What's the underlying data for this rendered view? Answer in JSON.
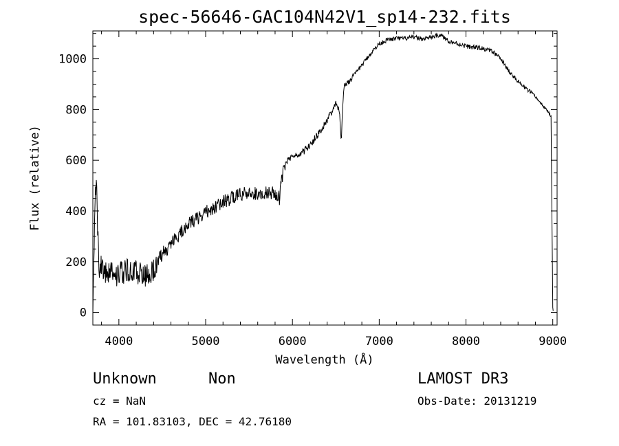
{
  "chart_data": {
    "type": "line",
    "title": "spec-56646-GAC104N42V1_sp14-232.fits",
    "xlabel": "Wavelength (Å)",
    "ylabel": "Flux (relative)",
    "xlim": [
      3700,
      9050
    ],
    "ylim": [
      -50,
      1110
    ],
    "xticks": [
      4000,
      5000,
      6000,
      7000,
      8000,
      9000
    ],
    "yticks": [
      0,
      200,
      400,
      600,
      800,
      1000
    ],
    "xtick_labels": [
      "4000",
      "5000",
      "6000",
      "7000",
      "8000",
      "9000"
    ],
    "ytick_labels": [
      "0",
      "200",
      "400",
      "600",
      "800",
      "1000"
    ],
    "series": [
      {
        "name": "flux",
        "x": [
          3700,
          3720,
          3740,
          3760,
          3780,
          3800,
          3850,
          3900,
          3950,
          4000,
          4100,
          4200,
          4300,
          4400,
          4500,
          4600,
          4700,
          4800,
          4900,
          5000,
          5100,
          5200,
          5300,
          5400,
          5500,
          5600,
          5700,
          5800,
          5850,
          5880,
          5900,
          5950,
          6000,
          6100,
          6200,
          6300,
          6400,
          6500,
          6540,
          6563,
          6580,
          6600,
          6700,
          6800,
          6900,
          7000,
          7100,
          7200,
          7300,
          7400,
          7500,
          7600,
          7700,
          7800,
          7900,
          8000,
          8100,
          8200,
          8300,
          8400,
          8500,
          8600,
          8700,
          8800,
          8900,
          8950,
          8980,
          9000,
          9005
        ],
        "y": [
          20,
          350,
          560,
          280,
          140,
          190,
          150,
          175,
          145,
          155,
          165,
          160,
          145,
          170,
          230,
          270,
          310,
          345,
          370,
          395,
          415,
          435,
          450,
          465,
          470,
          470,
          475,
          470,
          450,
          530,
          565,
          600,
          610,
          625,
          660,
          705,
          760,
          820,
          800,
          670,
          830,
          895,
          930,
          975,
          1020,
          1060,
          1075,
          1080,
          1080,
          1085,
          1078,
          1085,
          1095,
          1070,
          1060,
          1050,
          1045,
          1040,
          1030,
          1000,
          950,
          910,
          880,
          850,
          810,
          790,
          770,
          20,
          10
        ]
      }
    ]
  },
  "footer": {
    "left_line1_a": "Unknown",
    "left_line1_b": "Non",
    "left_line2": "cz = NaN",
    "left_line3": "RA = 101.83103, DEC =  42.76180",
    "right_line1": "LAMOST DR3",
    "right_line2": "Obs-Date: 20131219"
  }
}
